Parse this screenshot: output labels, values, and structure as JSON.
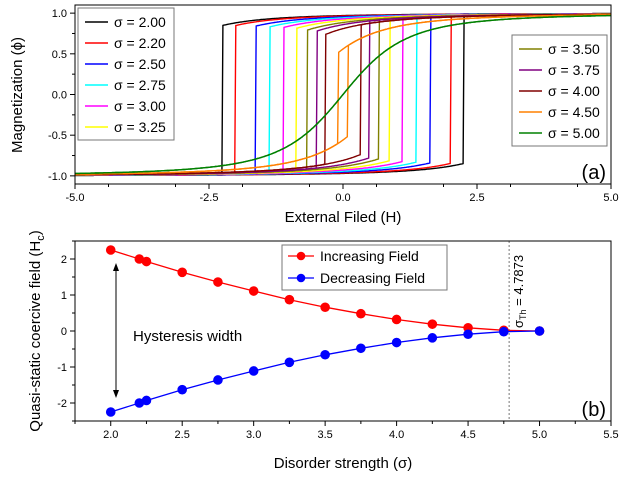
{
  "chart_data": [
    {
      "type": "line",
      "panel_label": "(a)",
      "xlabel": "External Filed (H)",
      "ylabel": "Magnetization (ϕ)",
      "xlim": [
        -5,
        5
      ],
      "ylim": [
        -1.1,
        1.1
      ],
      "xticks": [
        "-5.0",
        "-2.5",
        "0.0",
        "2.5",
        "5.0"
      ],
      "yticks": [
        "1.0",
        "0.5",
        "0.0",
        "-0.5",
        "-1.0"
      ],
      "legend_left": [
        0,
        1,
        2,
        3,
        4,
        5
      ],
      "legend_right": [
        6,
        7,
        8,
        9,
        10
      ],
      "series": [
        {
          "name": "σ = 2.00",
          "sigma": 2.0,
          "color": "#000000",
          "coercive_field": 2.25
        },
        {
          "name": "σ = 2.20",
          "sigma": 2.2,
          "color": "#ff0000",
          "coercive_field": 2.0
        },
        {
          "name": "σ = 2.50",
          "sigma": 2.5,
          "color": "#0000ff",
          "coercive_field": 1.63
        },
        {
          "name": "σ = 2.75",
          "sigma": 2.75,
          "color": "#00ffff",
          "coercive_field": 1.36
        },
        {
          "name": "σ = 3.00",
          "sigma": 3.0,
          "color": "#ff00ff",
          "coercive_field": 1.11
        },
        {
          "name": "σ = 3.25",
          "sigma": 3.25,
          "color": "#ffff00",
          "coercive_field": 0.87
        },
        {
          "name": "σ = 3.50",
          "sigma": 3.5,
          "color": "#808000",
          "coercive_field": 0.66
        },
        {
          "name": "σ = 3.75",
          "sigma": 3.75,
          "color": "#800080",
          "coercive_field": 0.48
        },
        {
          "name": "σ = 4.00",
          "sigma": 4.0,
          "color": "#800000",
          "coercive_field": 0.32
        },
        {
          "name": "σ = 4.50",
          "sigma": 4.5,
          "color": "#ff8000",
          "coercive_field": 0.09
        },
        {
          "name": "σ = 5.00",
          "sigma": 5.0,
          "color": "#008000",
          "coercive_field": 0.0
        }
      ]
    },
    {
      "type": "line",
      "panel_label": "(b)",
      "xlabel": "Disorder strength (σ)",
      "ylabel": "Quasi-static coercive field (H",
      "ylabel_sub": "c",
      "ylabel_end": ")",
      "xlim": [
        1.75,
        5.5
      ],
      "ylim": [
        -2.5,
        2.5
      ],
      "xticks": [
        "2.0",
        "2.5",
        "3.0",
        "3.5",
        "4.0",
        "4.5",
        "5.0",
        "5.5"
      ],
      "yticks": [
        "2",
        "1",
        "0",
        "-1",
        "-2"
      ],
      "x": [
        2.0,
        2.2,
        2.25,
        2.5,
        2.75,
        3.0,
        3.25,
        3.5,
        3.75,
        4.0,
        4.25,
        4.5,
        4.75,
        5.0
      ],
      "series": [
        {
          "name": "Increasing Field",
          "color": "#ff0000",
          "values": [
            2.25,
            2.0,
            1.93,
            1.63,
            1.36,
            1.11,
            0.87,
            0.66,
            0.48,
            0.32,
            0.19,
            0.09,
            0.02,
            0.0
          ]
        },
        {
          "name": "Decreasing Field",
          "color": "#0000ff",
          "values": [
            -2.25,
            -2.0,
            -1.93,
            -1.63,
            -1.36,
            -1.11,
            -0.87,
            -0.66,
            -0.48,
            -0.32,
            -0.19,
            -0.09,
            -0.02,
            0.0
          ]
        }
      ],
      "threshold": {
        "value": 4.7873,
        "label_main": "σ",
        "label_sub": "Th",
        "label_rest": " = 4.7873"
      },
      "annotation": "Hysteresis width",
      "legend_placement": "top-center"
    }
  ]
}
